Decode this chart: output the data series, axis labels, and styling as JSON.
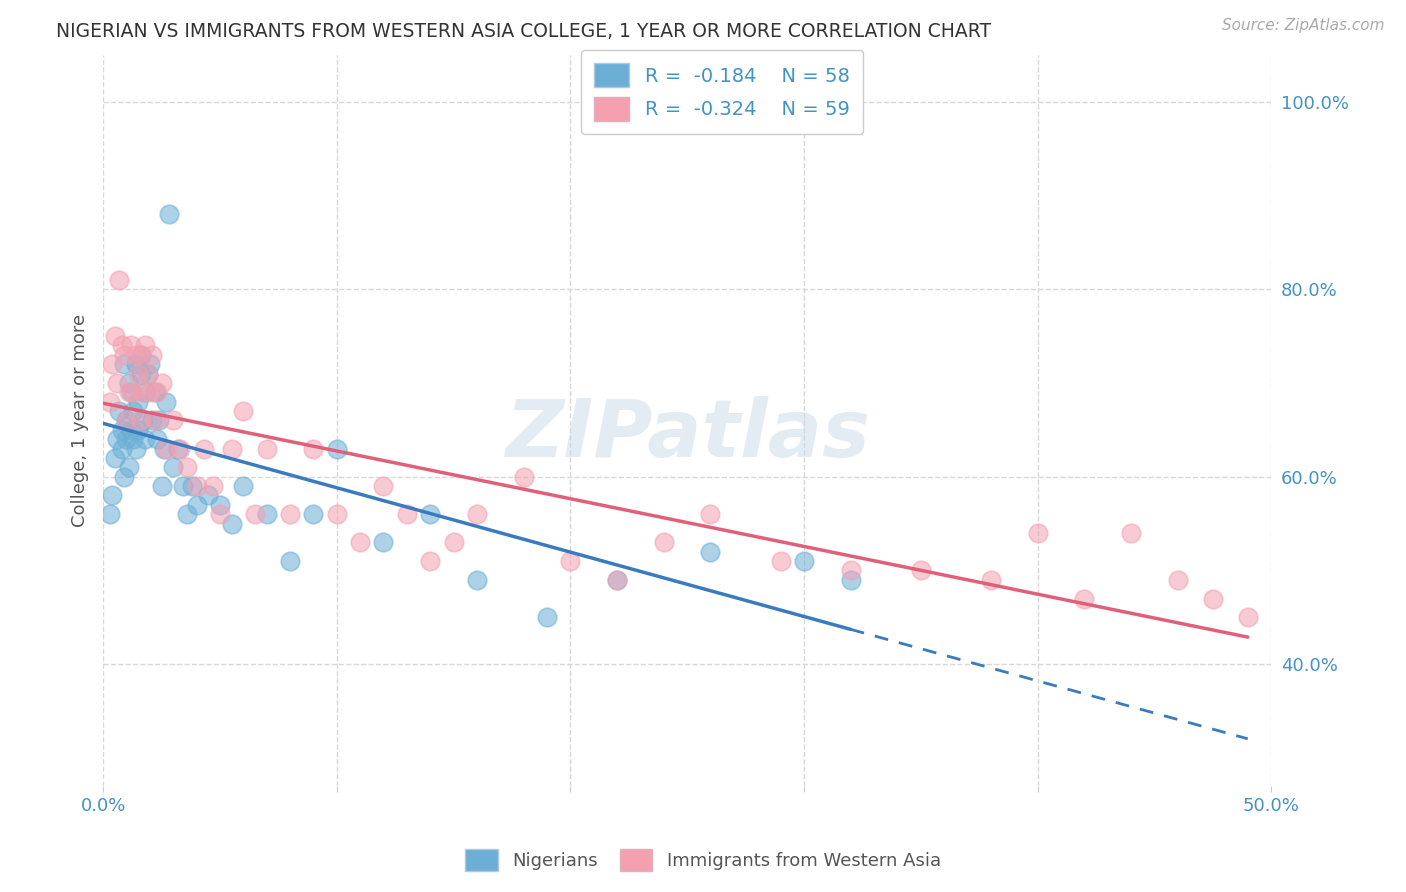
{
  "title": "NIGERIAN VS IMMIGRANTS FROM WESTERN ASIA COLLEGE, 1 YEAR OR MORE CORRELATION CHART",
  "source": "Source: ZipAtlas.com",
  "ylabel": "College, 1 year or more",
  "xlim": [
    0.0,
    0.5
  ],
  "ylim": [
    0.27,
    1.05
  ],
  "x_ticks": [
    0.0,
    0.1,
    0.2,
    0.3,
    0.4,
    0.5
  ],
  "x_tick_labels": [
    "0.0%",
    "",
    "",
    "",
    "",
    "50.0%"
  ],
  "y_ticks_right": [
    0.4,
    0.6,
    0.8,
    1.0
  ],
  "y_tick_labels_right": [
    "40.0%",
    "60.0%",
    "80.0%",
    "100.0%"
  ],
  "watermark": "ZIPatlas",
  "blue_color": "#6baed6",
  "pink_color": "#f4a0b0",
  "blue_line_color": "#3a7bbf",
  "pink_line_color": "#e0607a",
  "axis_label_color": "#4393c3",
  "background_color": "#ffffff",
  "grid_color": "#d8d8d8",
  "grid_style": "--",
  "nig_R": -0.184,
  "nig_N": 58,
  "wa_R": -0.324,
  "wa_N": 59,
  "nig_line_x0": 0.0,
  "nig_line_y0": 0.645,
  "nig_line_x1": 0.32,
  "nig_line_y1": 0.505,
  "wa_line_x0": 0.0,
  "wa_line_y0": 0.66,
  "wa_line_x1": 0.48,
  "wa_line_y1": 0.435
}
